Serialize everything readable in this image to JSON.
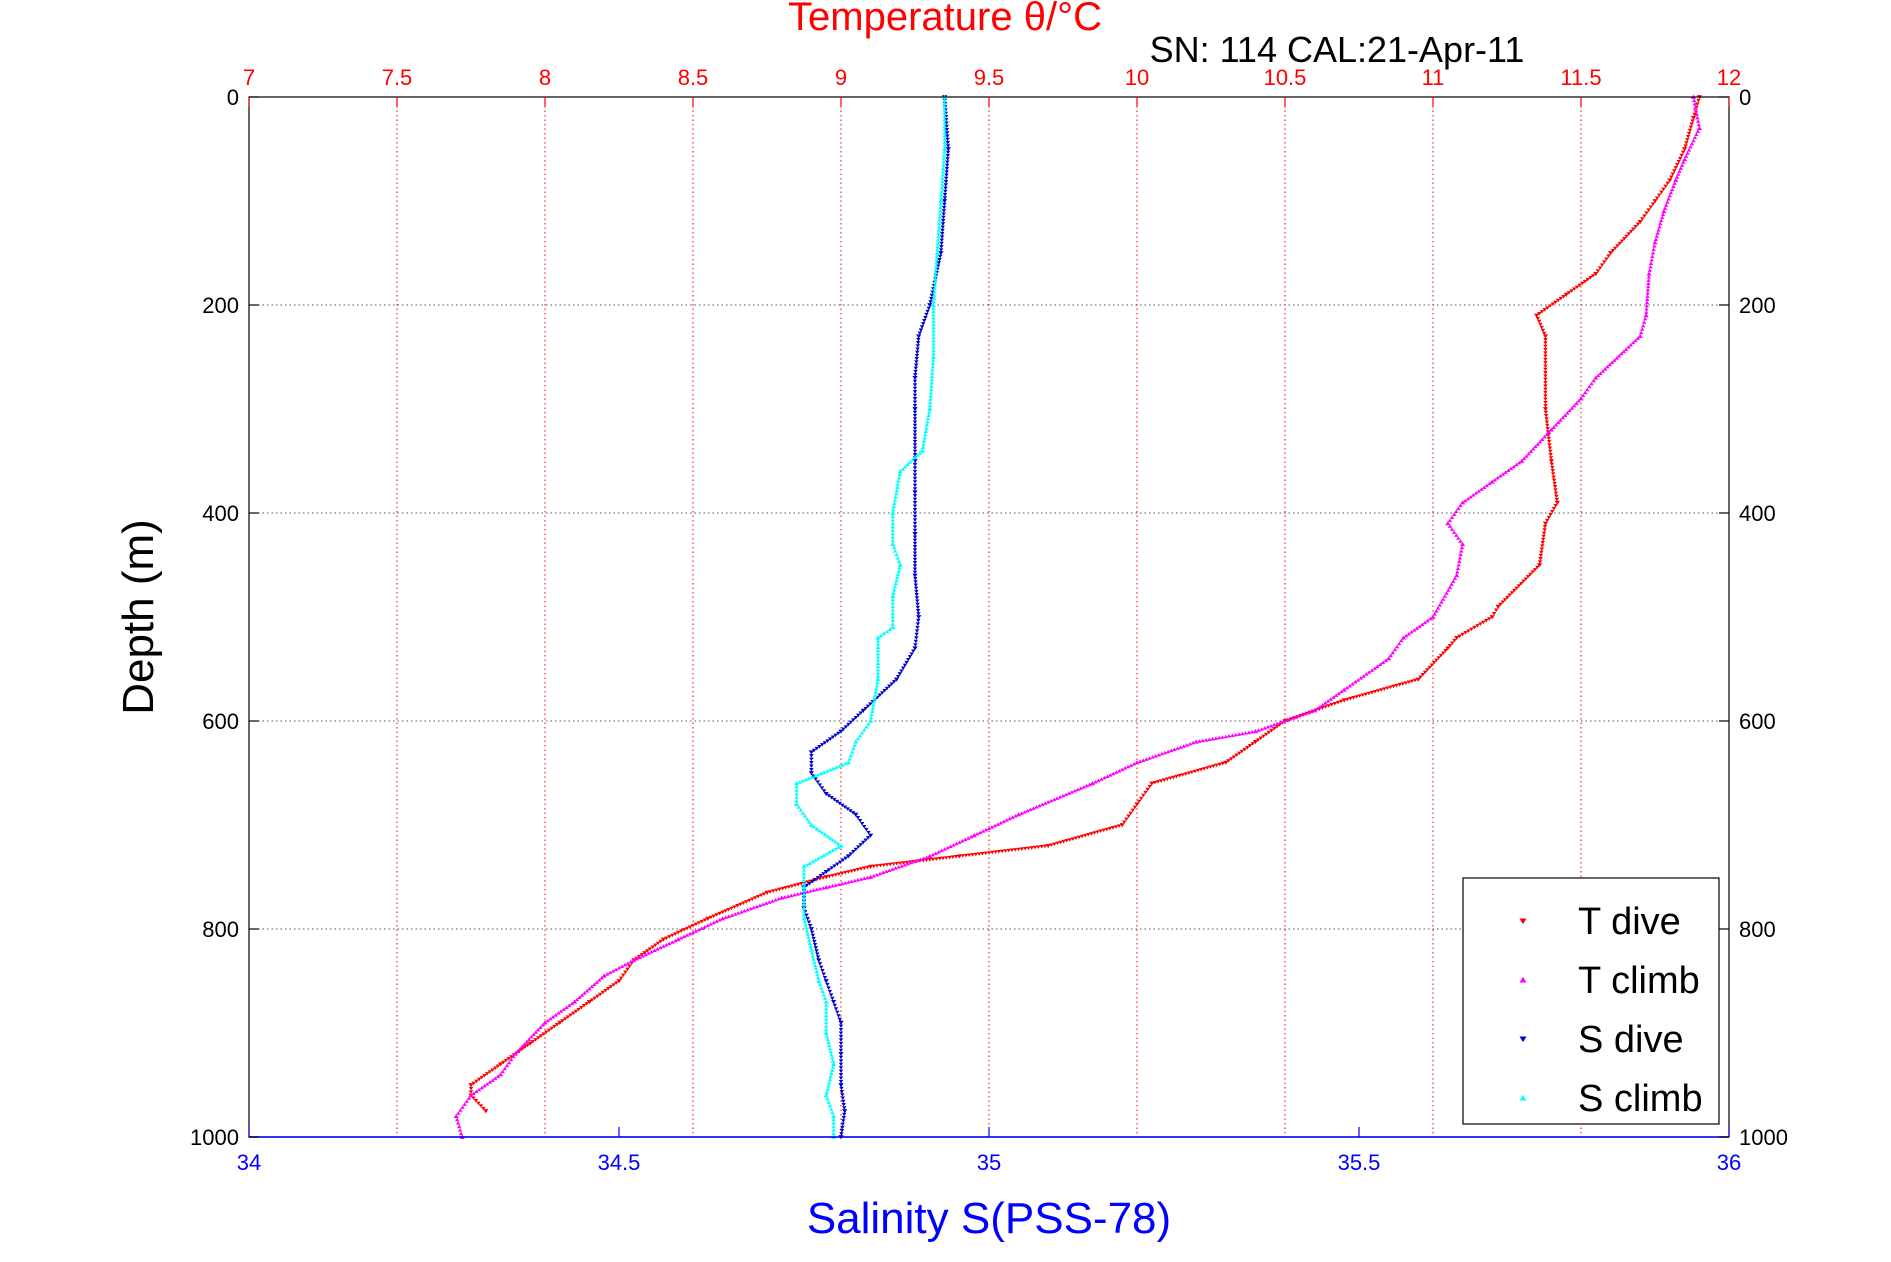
{
  "chart_data": {
    "type": "scatter",
    "title": "Temperature θ/°C",
    "subtitle": "SN: 114  CAL:21-Apr-11",
    "xlabel": "Salinity S(PSS-78)",
    "ylabel": "Depth (m)",
    "x_bottom": {
      "label": "Salinity S(PSS-78)",
      "lim": [
        34,
        36
      ],
      "ticks": [
        34,
        34.5,
        35,
        35.5,
        36
      ],
      "tick_labels": [
        "34",
        "34.5",
        "35",
        "35.5",
        "36"
      ],
      "color": "#0000ff"
    },
    "x_top": {
      "label": "Temperature θ/°C",
      "lim": [
        7,
        12
      ],
      "ticks": [
        7,
        7.5,
        8,
        8.5,
        9,
        9.5,
        10,
        10.5,
        11,
        11.5,
        12
      ],
      "tick_labels": [
        "7",
        "7.5",
        "8",
        "8.5",
        "9",
        "9.5",
        "10",
        "10.5",
        "11",
        "11.5",
        "12"
      ],
      "color": "#ff0000"
    },
    "y": {
      "label": "Depth (m)",
      "lim": [
        0,
        1000
      ],
      "reversed": true,
      "ticks": [
        0,
        200,
        400,
        600,
        800,
        1000
      ],
      "tick_labels": [
        "0",
        "200",
        "400",
        "600",
        "800",
        "1000"
      ]
    },
    "grid": true,
    "legend_position": "bottom-right",
    "series": [
      {
        "name": "T dive",
        "axis": "top",
        "color": "#ff0000",
        "marker": "triangle-down",
        "points": [
          [
            11.9,
            0
          ],
          [
            11.88,
            20
          ],
          [
            11.85,
            50
          ],
          [
            11.8,
            80
          ],
          [
            11.75,
            100
          ],
          [
            11.7,
            120
          ],
          [
            11.6,
            150
          ],
          [
            11.55,
            170
          ],
          [
            11.45,
            190
          ],
          [
            11.35,
            210
          ],
          [
            11.38,
            230
          ],
          [
            11.38,
            300
          ],
          [
            11.4,
            350
          ],
          [
            11.42,
            390
          ],
          [
            11.38,
            410
          ],
          [
            11.36,
            450
          ],
          [
            11.22,
            490
          ],
          [
            11.2,
            500
          ],
          [
            11.08,
            520
          ],
          [
            11.05,
            530
          ],
          [
            10.95,
            560
          ],
          [
            10.7,
            580
          ],
          [
            10.5,
            600
          ],
          [
            10.4,
            620
          ],
          [
            10.3,
            640
          ],
          [
            10.05,
            660
          ],
          [
            10.0,
            680
          ],
          [
            9.95,
            700
          ],
          [
            9.7,
            720
          ],
          [
            9.4,
            730
          ],
          [
            9.1,
            740
          ],
          [
            8.95,
            750
          ],
          [
            8.75,
            765
          ],
          [
            8.55,
            790
          ],
          [
            8.4,
            810
          ],
          [
            8.3,
            830
          ],
          [
            8.25,
            850
          ],
          [
            8.15,
            870
          ],
          [
            8.05,
            890
          ],
          [
            7.95,
            910
          ],
          [
            7.85,
            930
          ],
          [
            7.75,
            950
          ],
          [
            7.75,
            960
          ],
          [
            7.8,
            975
          ]
        ]
      },
      {
        "name": "T climb",
        "axis": "top",
        "color": "#ff00ff",
        "marker": "triangle-up",
        "points": [
          [
            11.88,
            0
          ],
          [
            11.9,
            30
          ],
          [
            11.85,
            60
          ],
          [
            11.82,
            80
          ],
          [
            11.78,
            110
          ],
          [
            11.75,
            140
          ],
          [
            11.73,
            170
          ],
          [
            11.72,
            210
          ],
          [
            11.7,
            230
          ],
          [
            11.55,
            270
          ],
          [
            11.5,
            290
          ],
          [
            11.4,
            320
          ],
          [
            11.3,
            350
          ],
          [
            11.2,
            370
          ],
          [
            11.1,
            390
          ],
          [
            11.05,
            410
          ],
          [
            11.1,
            430
          ],
          [
            11.08,
            460
          ],
          [
            11.0,
            500
          ],
          [
            10.9,
            520
          ],
          [
            10.85,
            540
          ],
          [
            10.7,
            570
          ],
          [
            10.6,
            590
          ],
          [
            10.4,
            610
          ],
          [
            10.2,
            620
          ],
          [
            10.0,
            640
          ],
          [
            9.85,
            660
          ],
          [
            9.6,
            690
          ],
          [
            9.45,
            710
          ],
          [
            9.3,
            730
          ],
          [
            9.1,
            750
          ],
          [
            8.95,
            760
          ],
          [
            8.8,
            770
          ],
          [
            8.6,
            790
          ],
          [
            8.45,
            810
          ],
          [
            8.3,
            830
          ],
          [
            8.2,
            845
          ],
          [
            8.1,
            870
          ],
          [
            8.0,
            890
          ],
          [
            7.9,
            920
          ],
          [
            7.85,
            940
          ],
          [
            7.75,
            960
          ],
          [
            7.7,
            980
          ],
          [
            7.72,
            1000
          ]
        ]
      },
      {
        "name": "S dive",
        "axis": "bottom",
        "color": "#0000cd",
        "marker": "triangle-down",
        "points": [
          [
            34.94,
            0
          ],
          [
            34.945,
            50
          ],
          [
            34.94,
            100
          ],
          [
            34.935,
            150
          ],
          [
            34.92,
            200
          ],
          [
            34.905,
            230
          ],
          [
            34.9,
            270
          ],
          [
            34.9,
            300
          ],
          [
            34.9,
            350
          ],
          [
            34.9,
            380
          ],
          [
            34.9,
            420
          ],
          [
            34.9,
            460
          ],
          [
            34.905,
            500
          ],
          [
            34.9,
            530
          ],
          [
            34.875,
            560
          ],
          [
            34.83,
            590
          ],
          [
            34.8,
            610
          ],
          [
            34.76,
            630
          ],
          [
            34.76,
            650
          ],
          [
            34.78,
            670
          ],
          [
            34.82,
            690
          ],
          [
            34.84,
            710
          ],
          [
            34.81,
            730
          ],
          [
            34.78,
            745
          ],
          [
            34.75,
            760
          ],
          [
            34.75,
            780
          ],
          [
            34.76,
            800
          ],
          [
            34.77,
            830
          ],
          [
            34.78,
            850
          ],
          [
            34.79,
            870
          ],
          [
            34.8,
            890
          ],
          [
            34.8,
            920
          ],
          [
            34.8,
            950
          ],
          [
            34.805,
            975
          ],
          [
            34.8,
            1000
          ]
        ]
      },
      {
        "name": "S climb",
        "axis": "bottom",
        "color": "#00ffff",
        "marker": "triangle-up",
        "points": [
          [
            34.94,
            0
          ],
          [
            34.94,
            50
          ],
          [
            34.935,
            100
          ],
          [
            34.93,
            150
          ],
          [
            34.925,
            200
          ],
          [
            34.925,
            250
          ],
          [
            34.92,
            300
          ],
          [
            34.91,
            340
          ],
          [
            34.88,
            360
          ],
          [
            34.87,
            400
          ],
          [
            34.87,
            430
          ],
          [
            34.88,
            450
          ],
          [
            34.87,
            480
          ],
          [
            34.87,
            510
          ],
          [
            34.85,
            520
          ],
          [
            34.85,
            560
          ],
          [
            34.84,
            600
          ],
          [
            34.82,
            620
          ],
          [
            34.81,
            640
          ],
          [
            34.74,
            660
          ],
          [
            34.74,
            680
          ],
          [
            34.76,
            700
          ],
          [
            34.8,
            720
          ],
          [
            34.75,
            740
          ],
          [
            34.75,
            760
          ],
          [
            34.75,
            790
          ],
          [
            34.76,
            820
          ],
          [
            34.77,
            850
          ],
          [
            34.78,
            870
          ],
          [
            34.78,
            900
          ],
          [
            34.79,
            930
          ],
          [
            34.78,
            960
          ],
          [
            34.79,
            980
          ],
          [
            34.79,
            1000
          ]
        ]
      }
    ]
  }
}
